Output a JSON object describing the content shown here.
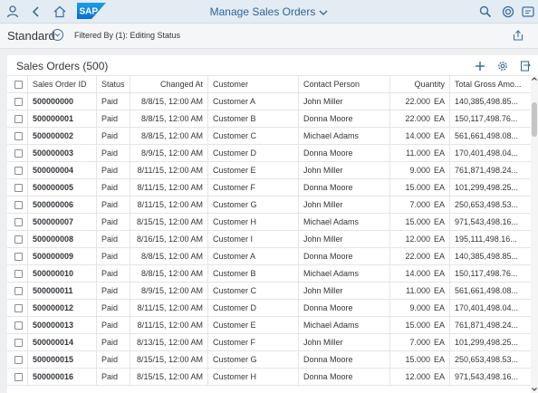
{
  "shell": {
    "title": "Manage Sales Orders",
    "logo_text": "SAP",
    "brand_color": "#0a6ed1"
  },
  "filterbar": {
    "variant": "Standard",
    "filtered_by": "Filtered By (1): Editing Status"
  },
  "table": {
    "title": "Sales Orders (500)",
    "columns": [
      "Sales Order ID",
      "Status",
      "Changed At",
      "Customer",
      "Contact Person",
      "Quantity",
      "Total Gross Amo..."
    ],
    "rows": [
      {
        "id": "500000000",
        "status": "Paid",
        "changed": "8/8/15, 12:00 AM",
        "customer": "Customer A",
        "contact": "John Miller",
        "qty": "22.000",
        "unit": "EA",
        "total": "140,385,498.85..."
      },
      {
        "id": "500000001",
        "status": "Paid",
        "changed": "8/8/15, 12:00 AM",
        "customer": "Customer B",
        "contact": "Donna Moore",
        "qty": "22.000",
        "unit": "EA",
        "total": "150,117,498.76..."
      },
      {
        "id": "500000002",
        "status": "Paid",
        "changed": "8/8/15, 12:00 AM",
        "customer": "Customer C",
        "contact": "Michael Adams",
        "qty": "14.000",
        "unit": "EA",
        "total": "561,661,498.08..."
      },
      {
        "id": "500000003",
        "status": "Paid",
        "changed": "8/9/15, 12:00 AM",
        "customer": "Customer D",
        "contact": "Donna Moore",
        "qty": "11.000",
        "unit": "EA",
        "total": "170,401,498.04..."
      },
      {
        "id": "500000004",
        "status": "Paid",
        "changed": "8/11/15, 12:00 AM",
        "customer": "Customer E",
        "contact": "John Miller",
        "qty": "9.000",
        "unit": "EA",
        "total": "761,871,498.24..."
      },
      {
        "id": "500000005",
        "status": "Paid",
        "changed": "8/11/15, 12:00 AM",
        "customer": "Customer F",
        "contact": "Donna Moore",
        "qty": "15.000",
        "unit": "EA",
        "total": "101,299,498.25..."
      },
      {
        "id": "500000006",
        "status": "Paid",
        "changed": "8/11/15, 12:00 AM",
        "customer": "Customer G",
        "contact": "John Miller",
        "qty": "7.000",
        "unit": "EA",
        "total": "250,653,498.53..."
      },
      {
        "id": "500000007",
        "status": "Paid",
        "changed": "8/15/15, 12:00 AM",
        "customer": "Customer H",
        "contact": "Michael Adams",
        "qty": "15.000",
        "unit": "EA",
        "total": "971,543,498.16..."
      },
      {
        "id": "500000008",
        "status": "Paid",
        "changed": "8/16/15, 12:00 AM",
        "customer": "Customer I",
        "contact": "John Miller",
        "qty": "12.000",
        "unit": "EA",
        "total": "195,111,498.16..."
      },
      {
        "id": "500000009",
        "status": "Paid",
        "changed": "8/8/15, 12:00 AM",
        "customer": "Customer A",
        "contact": "Donna Moore",
        "qty": "22.000",
        "unit": "EA",
        "total": "140,385,498.85..."
      },
      {
        "id": "500000010",
        "status": "Paid",
        "changed": "8/8/15, 12:00 AM",
        "customer": "Customer B",
        "contact": "Michael Adams",
        "qty": "14.000",
        "unit": "EA",
        "total": "150,117,498.76..."
      },
      {
        "id": "500000011",
        "status": "Paid",
        "changed": "8/9/15, 12:00 AM",
        "customer": "Customer C",
        "contact": "John Miller",
        "qty": "11.000",
        "unit": "EA",
        "total": "561,661,498.08..."
      },
      {
        "id": "500000012",
        "status": "Paid",
        "changed": "8/11/15, 12:00 AM",
        "customer": "Customer D",
        "contact": "Donna Moore",
        "qty": "9.000",
        "unit": "EA",
        "total": "170,401,498.04..."
      },
      {
        "id": "500000013",
        "status": "Paid",
        "changed": "8/11/15, 12:00 AM",
        "customer": "Customer E",
        "contact": "Michael Adams",
        "qty": "15.000",
        "unit": "EA",
        "total": "761,871,498.24..."
      },
      {
        "id": "500000014",
        "status": "Paid",
        "changed": "8/13/15, 12:00 AM",
        "customer": "Customer F",
        "contact": "John Miller",
        "qty": "7.000",
        "unit": "EA",
        "total": "101,299,498.25..."
      },
      {
        "id": "500000015",
        "status": "Paid",
        "changed": "8/15/15, 12:00 AM",
        "customer": "Customer G",
        "contact": "Donna Moore",
        "qty": "15.000",
        "unit": "EA",
        "total": "250,653,498.53..."
      },
      {
        "id": "500000016",
        "status": "Paid",
        "changed": "8/15/15, 12:00 AM",
        "customer": "Customer H",
        "contact": "Donna Moore",
        "qty": "12.000",
        "unit": "EA",
        "total": "971,543,498.16..."
      }
    ]
  }
}
